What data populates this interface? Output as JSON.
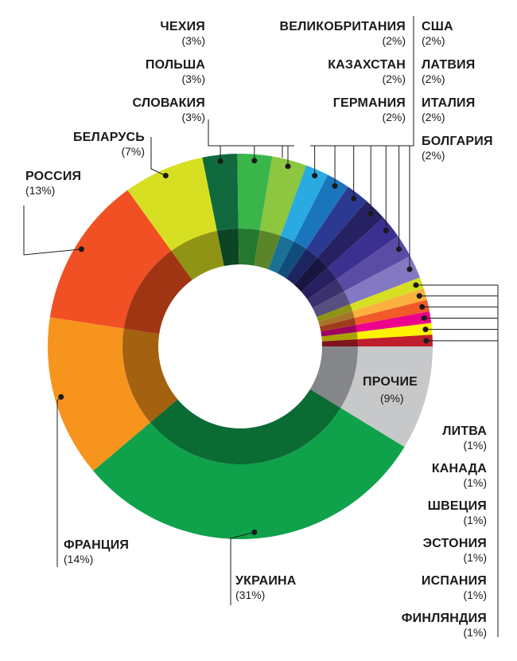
{
  "chart_data": {
    "type": "pie",
    "style": "donut",
    "slices": [
      {
        "label": "УКРАИНА",
        "value": 31,
        "percent_text": "(31%)",
        "color": "#0fa24a",
        "inner_color": "#0a6b33"
      },
      {
        "label": "ФРАНЦИЯ",
        "value": 14,
        "percent_text": "(14%)",
        "color": "#f7941d",
        "inner_color": "#a4610f"
      },
      {
        "label": "РОССИЯ",
        "value": 13,
        "percent_text": "(13%)",
        "color": "#f05023",
        "inner_color": "#a03514"
      },
      {
        "label": "БЕЛАРУСЬ",
        "value": 7,
        "percent_text": "(7%)",
        "color": "#d7df23",
        "inner_color": "#8f9415"
      },
      {
        "label": "ЧЕХИЯ",
        "value": 3,
        "percent_text": "(3%)",
        "color": "#106a3d",
        "inner_color": "#0b4526"
      },
      {
        "label": "ПОЛЬША",
        "value": 3,
        "percent_text": "(3%)",
        "color": "#39b54a",
        "inner_color": "#24782f"
      },
      {
        "label": "СЛОВАКИЯ",
        "value": 3,
        "percent_text": "(3%)",
        "color": "#8dc63f",
        "inner_color": "#5c8429"
      },
      {
        "label": "ВЕЛИКОБРИТАНИЯ",
        "value": 2,
        "percent_text": "(2%)",
        "color": "#29abe2",
        "inner_color": "#1a7196"
      },
      {
        "label": "КАЗАХСТАН",
        "value": 2,
        "percent_text": "(2%)",
        "color": "#1b75bc",
        "inner_color": "#114d7c"
      },
      {
        "label": "ГЕРМАНИЯ",
        "value": 2,
        "percent_text": "(2%)",
        "color": "#2b3990",
        "inner_color": "#1c2560"
      },
      {
        "label": "США",
        "value": 2,
        "percent_text": "(2%)",
        "color": "#262262",
        "inner_color": "#181540"
      },
      {
        "label": "ЛАТВИЯ",
        "value": 2,
        "percent_text": "(2%)",
        "color": "#3b2f8f",
        "inner_color": "#271f5f"
      },
      {
        "label": "ИТАЛИЯ",
        "value": 2,
        "percent_text": "(2%)",
        "color": "#5a4ba5",
        "inner_color": "#3c316e"
      },
      {
        "label": "БОЛГАРИЯ",
        "value": 2,
        "percent_text": "(2%)",
        "color": "#8478c2",
        "inner_color": "#574f80"
      },
      {
        "label": "ЛИТВА",
        "value": 1,
        "percent_text": "(1%)",
        "color": "#d7df23",
        "inner_color": "#8f9415"
      },
      {
        "label": "КАНАДА",
        "value": 1,
        "percent_text": "(1%)",
        "color": "#fbb040",
        "inner_color": "#a7752a"
      },
      {
        "label": "ШВЕЦИЯ",
        "value": 1,
        "percent_text": "(1%)",
        "color": "#f15a29",
        "inner_color": "#a03c1b"
      },
      {
        "label": "ЭСТОНИЯ",
        "value": 1,
        "percent_text": "(1%)",
        "color": "#ec008c",
        "inner_color": "#9d005d"
      },
      {
        "label": "ИСПАНИЯ",
        "value": 1,
        "percent_text": "(1%)",
        "color": "#fff200",
        "inner_color": "#aaa100"
      },
      {
        "label": "ФИНЛЯНДИЯ",
        "value": 1,
        "percent_text": "(1%)",
        "color": "#be1e2d",
        "inner_color": "#7f141e"
      },
      {
        "label": "ПРОЧИЕ",
        "value": 9,
        "percent_text": "(9%)",
        "color": "#c7c8ca",
        "inner_color": "#85868a"
      }
    ]
  }
}
